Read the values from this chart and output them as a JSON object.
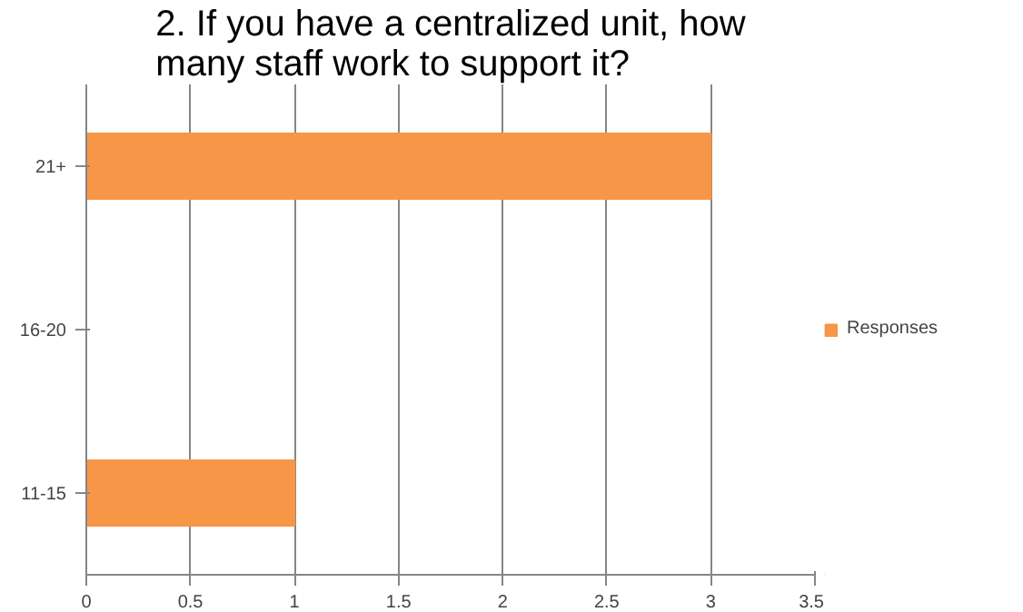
{
  "chart_data": {
    "type": "bar",
    "orientation": "horizontal",
    "title": "2. If you have a centralized unit, how many staff work to support it?",
    "categories": [
      "21+",
      "16-20",
      "11-15"
    ],
    "series": [
      {
        "name": "Responses",
        "color": "#f79646",
        "values": [
          3,
          0,
          1
        ]
      }
    ],
    "xlim": [
      0,
      3.5
    ],
    "xticks": [
      0,
      0.5,
      1,
      1.5,
      2,
      2.5,
      3,
      3.5
    ],
    "grid": "x",
    "legend": "right"
  }
}
